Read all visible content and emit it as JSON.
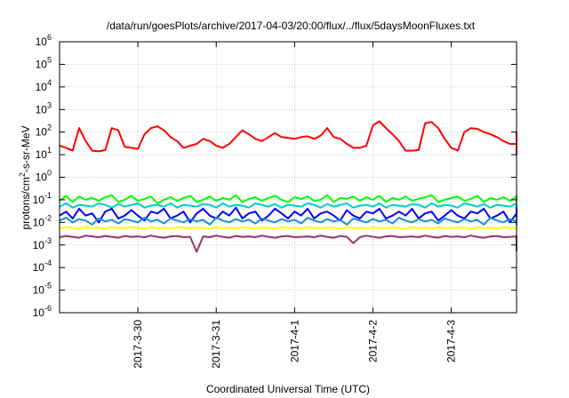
{
  "chart_data": {
    "type": "line",
    "title": "/data/run/goesPlots/archive/2017-04-03/20:00/flux/../flux/5daysMoonFluxes.txt",
    "xlabel": "Coordinated Universal Time (UTC)",
    "ylabel": {
      "base": "protons/cm",
      "sup": "2",
      "rest": "-s-sr-MeV"
    },
    "y_scale": "log",
    "ylim": [
      1e-06,
      1000000.0
    ],
    "y_ticks": [
      {
        "value": 1e-06,
        "base": "10",
        "exp": "-6"
      },
      {
        "value": 1e-05,
        "base": "10",
        "exp": "-5"
      },
      {
        "value": 0.0001,
        "base": "10",
        "exp": "-4"
      },
      {
        "value": 0.001,
        "base": "10",
        "exp": "-3"
      },
      {
        "value": 0.01,
        "base": "10",
        "exp": "-2"
      },
      {
        "value": 0.1,
        "base": "10",
        "exp": "-1"
      },
      {
        "value": 1,
        "base": "10",
        "exp": "0"
      },
      {
        "value": 10,
        "base": "10",
        "exp": "1"
      },
      {
        "value": 100,
        "base": "10",
        "exp": "2"
      },
      {
        "value": 1000,
        "base": "10",
        "exp": "3"
      },
      {
        "value": 10000,
        "base": "10",
        "exp": "4"
      },
      {
        "value": 100000,
        "base": "10",
        "exp": "5"
      },
      {
        "value": 1000000,
        "base": "10",
        "exp": "6"
      }
    ],
    "xlim": [
      "2017-03-29T00:00",
      "2017-04-03T20:00"
    ],
    "x_ticks": [
      "2017-3-30",
      "2017-3-31",
      "2017-4-1",
      "2017-4-2",
      "2017-4-3"
    ],
    "x_tick_dates": [
      "2017-03-30T00:00",
      "2017-03-31T00:00",
      "2017-04-01T00:00",
      "2017-04-02T00:00",
      "2017-04-03T00:00"
    ],
    "grid": true,
    "legend": "none",
    "series": [
      {
        "color": "#ff0000",
        "x_start": "2017-03-29T00:00",
        "x_step_hours": 2,
        "values": [
          25,
          20,
          15,
          150,
          40,
          15,
          14,
          16,
          150,
          120,
          22,
          20,
          18,
          80,
          150,
          180,
          120,
          60,
          40,
          20,
          25,
          30,
          50,
          40,
          25,
          20,
          30,
          60,
          120,
          80,
          50,
          40,
          60,
          90,
          60,
          55,
          50,
          60,
          65,
          50,
          70,
          150,
          60,
          50,
          30,
          20,
          20,
          25,
          200,
          300,
          150,
          80,
          40,
          15,
          15,
          16,
          250,
          280,
          150,
          50,
          20,
          15,
          100,
          150,
          140,
          100,
          80,
          60,
          40,
          30,
          30,
          20,
          10,
          12,
          15,
          40,
          30,
          20,
          25,
          20,
          15,
          12,
          13,
          20,
          30,
          25,
          20,
          15,
          12,
          10,
          15,
          14,
          12,
          10,
          15,
          18,
          20,
          14,
          15,
          20,
          18,
          16,
          20,
          25,
          20,
          40,
          80,
          100,
          90,
          70,
          50,
          30,
          20,
          15,
          12,
          14,
          20,
          22,
          20,
          18,
          15,
          16,
          20,
          25,
          18,
          16,
          20,
          40
        ]
      },
      {
        "color": "#00ff00",
        "x_start": "2017-03-29T00:00",
        "x_step_hours": 2,
        "values": [
          0.09,
          0.15,
          0.08,
          0.14,
          0.1,
          0.12,
          0.09,
          0.13,
          0.16,
          0.08,
          0.1,
          0.15,
          0.09,
          0.11,
          0.14,
          0.07,
          0.1,
          0.13,
          0.09,
          0.12,
          0.15,
          0.08,
          0.1,
          0.14,
          0.09,
          0.12,
          0.1,
          0.16,
          0.08,
          0.11,
          0.13,
          0.09,
          0.12,
          0.15,
          0.1,
          0.08,
          0.13,
          0.11,
          0.14,
          0.09,
          0.1,
          0.16,
          0.08,
          0.12,
          0.11,
          0.14,
          0.09,
          0.13,
          0.1,
          0.15,
          0.08,
          0.12,
          0.1,
          0.14,
          0.09,
          0.11,
          0.13,
          0.16,
          0.08,
          0.1,
          0.12,
          0.14,
          0.09,
          0.11,
          0.15,
          0.08,
          0.12,
          0.1,
          0.13,
          0.09,
          0.14,
          0.11,
          0.1,
          0.16,
          0.08,
          0.12,
          0.1,
          0.14,
          0.09,
          0.13,
          0.11,
          0.15,
          0.08,
          0.1,
          0.12,
          0.14,
          0.09,
          0.11,
          0.13,
          0.1,
          0.16,
          0.08,
          0.12,
          0.1,
          0.14,
          0.09,
          0.11,
          0.13,
          0.15,
          0.08,
          0.1,
          0.12,
          0.14,
          0.09,
          0.11,
          0.13,
          0.1,
          0.15,
          0.08,
          0.12,
          0.1,
          0.14,
          0.09,
          0.11,
          0.13,
          0.16,
          0.1,
          0.12,
          0.14,
          0.09,
          0.11,
          0.13,
          0.15,
          0.12,
          0.14,
          0.16
        ]
      },
      {
        "color": "#00cccc",
        "x_start": "2017-03-29T00:00",
        "x_step_hours": 2,
        "values": [
          0.05,
          0.07,
          0.045,
          0.06,
          0.055,
          0.05,
          0.07,
          0.06,
          0.045,
          0.065,
          0.05,
          0.06,
          0.07,
          0.045,
          0.055,
          0.06,
          0.05,
          0.07,
          0.045,
          0.06,
          0.055,
          0.05,
          0.065,
          0.06,
          0.045,
          0.07,
          0.05,
          0.06,
          0.055,
          0.045,
          0.07,
          0.06,
          0.05,
          0.065,
          0.045,
          0.06,
          0.055,
          0.05,
          0.07,
          0.06,
          0.045,
          0.065,
          0.05,
          0.06,
          0.07,
          0.045,
          0.055,
          0.06,
          0.05,
          0.07,
          0.045,
          0.06,
          0.055,
          0.05,
          0.065,
          0.06,
          0.045,
          0.07,
          0.05,
          0.06,
          0.055,
          0.045,
          0.07,
          0.06,
          0.05,
          0.065,
          0.045,
          0.06,
          0.055,
          0.05,
          0.07,
          0.06,
          0.045,
          0.065,
          0.05,
          0.06,
          0.07,
          0.045,
          0.055,
          0.06,
          0.05,
          0.07,
          0.045,
          0.06,
          0.055,
          0.05,
          0.065,
          0.06,
          0.045,
          0.07,
          0.05,
          0.06,
          0.055,
          0.045,
          0.07,
          0.06,
          0.05,
          0.065,
          0.045,
          0.06,
          0.055,
          0.05,
          0.07,
          0.06,
          0.045,
          0.065,
          0.05,
          0.06,
          0.07,
          0.045,
          0.055,
          0.06,
          0.05,
          0.07,
          0.045,
          0.06,
          0.055,
          0.05,
          0.065,
          0.06,
          0.045,
          0.07,
          0.05,
          0.06,
          0.055,
          0.06,
          0.065,
          0.07
        ]
      },
      {
        "color": "#0000ff",
        "x_start": "2017-03-29T00:00",
        "x_step_hours": 2,
        "values": [
          0.02,
          0.03,
          0.015,
          0.04,
          0.02,
          0.025,
          0.01,
          0.03,
          0.04,
          0.015,
          0.02,
          0.035,
          0.02,
          0.012,
          0.03,
          0.025,
          0.04,
          0.015,
          0.02,
          0.03,
          0.01,
          0.025,
          0.04,
          0.02,
          0.015,
          0.03,
          0.02,
          0.045,
          0.015,
          0.025,
          0.03,
          0.012,
          0.02,
          0.04,
          0.025,
          0.015,
          0.03,
          0.02,
          0.04,
          0.015,
          0.025,
          0.03,
          0.02,
          0.012,
          0.035,
          0.02,
          0.015,
          0.03,
          0.025,
          0.04,
          0.015,
          0.02,
          0.03,
          0.02,
          0.04,
          0.015,
          0.025,
          0.03,
          0.012,
          0.02,
          0.035,
          0.02,
          0.015,
          0.03,
          0.025,
          0.04,
          0.015,
          0.02,
          0.03,
          0.01,
          0.025,
          0.04,
          0.02,
          0.015,
          0.03,
          0.02,
          0.045,
          0.015,
          0.025,
          0.03,
          0.012,
          0.02,
          0.04,
          0.025,
          0.015,
          0.03,
          0.02,
          0.04,
          0.015,
          0.025,
          0.03,
          0.02,
          0.012,
          0.035,
          0.02,
          0.015,
          0.03,
          0.025,
          0.04,
          0.015,
          0.02,
          0.03,
          0.02,
          0.04,
          0.015,
          0.025,
          0.03,
          0.012,
          0.02,
          0.035,
          0.02,
          0.015,
          0.03,
          0.025,
          0.04,
          0.015,
          0.02,
          0.03,
          0.01,
          0.025,
          0.04,
          0.02,
          0.015,
          0.03,
          0.025,
          0.02,
          0.03,
          0.025
        ]
      },
      {
        "color": "#1a8fd0",
        "x_start": "2017-03-29T00:00",
        "x_step_hours": 2,
        "values": [
          0.012,
          0.016,
          0.01,
          0.014,
          0.012,
          0.008,
          0.015,
          0.011,
          0.013,
          0.009,
          0.014,
          0.012,
          0.01,
          0.016,
          0.011,
          0.013,
          0.009,
          0.015,
          0.012,
          0.01,
          0.014,
          0.011,
          0.013,
          0.008,
          0.016,
          0.012,
          0.01,
          0.014,
          0.011,
          0.013,
          0.009,
          0.015,
          0.012,
          0.01,
          0.014,
          0.011,
          0.013,
          0.009,
          0.016,
          0.012,
          0.01,
          0.014,
          0.011,
          0.013,
          0.008,
          0.015,
          0.012,
          0.01,
          0.014,
          0.011,
          0.013,
          0.009,
          0.016,
          0.012,
          0.01,
          0.014,
          0.011,
          0.013,
          0.009,
          0.015,
          0.012,
          0.01,
          0.014,
          0.011,
          0.013,
          0.008,
          0.016,
          0.012,
          0.01,
          0.014,
          0.011,
          0.013,
          0.009,
          0.015,
          0.012,
          0.01,
          0.014,
          0.011,
          0.013,
          0.009,
          0.016,
          0.012,
          0.01,
          0.014,
          0.011,
          0.013,
          0.008,
          0.015,
          0.012,
          0.01,
          0.014,
          0.011,
          0.013,
          0.009,
          0.016,
          0.012,
          0.01,
          0.014,
          0.011,
          0.013,
          0.009,
          0.015,
          0.012,
          0.01,
          0.014,
          0.011,
          0.013,
          0.008,
          0.016,
          0.012,
          0.01,
          0.014,
          0.011,
          0.013,
          0.009,
          0.015,
          0.012,
          0.01,
          0.014,
          0.011,
          0.013,
          0.012,
          0.014,
          0.013
        ]
      },
      {
        "color": "#ffff00",
        "x_start": "2017-03-29T00:00",
        "x_step_hours": 2,
        "values": [
          0.0055,
          0.006,
          0.0058,
          0.0052,
          0.0062,
          0.0056,
          0.0059,
          0.0053,
          0.0061,
          0.0057,
          0.0055,
          0.006,
          0.0058,
          0.0052,
          0.0062,
          0.0056,
          0.0059,
          0.0053,
          0.0061,
          0.0057,
          0.0055,
          0.006,
          0.0058,
          0.0052,
          0.0062,
          0.0056,
          0.0059,
          0.0053,
          0.0061,
          0.0057,
          0.0055,
          0.006,
          0.0058,
          0.0052,
          0.0062,
          0.0056,
          0.0059,
          0.0053,
          0.0061,
          0.0057,
          0.0055,
          0.006,
          0.0058,
          0.0052,
          0.0062,
          0.0056,
          0.0059,
          0.0053,
          0.0061,
          0.0057,
          0.0055,
          0.006,
          0.0058,
          0.0052,
          0.0062,
          0.0056,
          0.0059,
          0.0053,
          0.0061,
          0.0057,
          0.0055,
          0.006,
          0.0058,
          0.0052,
          0.0062,
          0.0056,
          0.0059,
          0.0053,
          0.0061,
          0.0057,
          0.0055,
          0.006,
          0.0058,
          0.0052,
          0.0062,
          0.0056,
          0.0059,
          0.0053,
          0.0061,
          0.0057,
          0.0055,
          0.006,
          0.0058,
          0.0052,
          0.0062,
          0.0056,
          0.0059,
          0.0053,
          0.0061,
          0.0057,
          0.0055,
          0.006,
          0.0058,
          0.0052,
          0.0062,
          0.0056,
          0.0059,
          0.0053,
          0.0061,
          0.0057,
          0.0055,
          0.006,
          0.0058,
          0.0052,
          0.0062,
          0.0056,
          0.0059,
          0.0053,
          0.0061,
          0.0057,
          0.0055,
          0.006,
          0.0058,
          0.0052,
          0.0062,
          0.0056,
          0.0059,
          0.0053,
          0.0061,
          0.0057,
          0.0055,
          0.006,
          0.0058,
          0.0056,
          0.006,
          0.0058
        ]
      },
      {
        "color": "#993366",
        "x_start": "2017-03-29T00:00",
        "x_step_hours": 2,
        "values": [
          0.0022,
          0.0025,
          0.0023,
          0.0021,
          0.0026,
          0.0024,
          0.0022,
          0.0025,
          0.0023,
          0.0021,
          0.0025,
          0.0023,
          0.0024,
          0.0022,
          0.0026,
          0.0023,
          0.0021,
          0.0024,
          0.0025,
          0.0022,
          0.0023,
          0.0005,
          0.0024,
          0.0022,
          0.0026,
          0.0023,
          0.0021,
          0.0025,
          0.0023,
          0.0024,
          0.0022,
          0.0026,
          0.0023,
          0.0021,
          0.0024,
          0.0025,
          0.0022,
          0.0023,
          0.0024,
          0.0022,
          0.0026,
          0.0023,
          0.0021,
          0.0025,
          0.0023,
          0.0012,
          0.0022,
          0.0026,
          0.0023,
          0.0021,
          0.0024,
          0.0025,
          0.0022,
          0.0023,
          0.0024,
          0.0022,
          0.0026,
          0.0023,
          0.0021,
          0.0025,
          0.0023,
          0.0024,
          0.0022,
          0.0026,
          0.0023,
          0.0021,
          0.0024,
          0.0025,
          0.0022,
          0.0023,
          0.0024,
          0.0022,
          0.0026,
          0.0023,
          0.0021,
          0.0025,
          0.0023,
          0.0024,
          0.0022,
          0.0026,
          0.0023,
          0.0021,
          0.0024,
          0.0025,
          0.0022,
          0.0023,
          0.0024,
          0.00055,
          0.0026,
          0.0023,
          0.0021,
          0.0025,
          0.0023,
          0.0024,
          0.0022,
          0.0026,
          0.0023,
          0.0021,
          0.0024,
          0.0025,
          0.0022,
          0.0023,
          0.0024,
          0.0022,
          0.0026,
          0.0023,
          0.0021,
          0.0025,
          0.0023,
          0.0024,
          0.0022,
          0.0026,
          0.0023,
          0.0021,
          0.0024,
          0.0025,
          0.0022,
          0.0023,
          0.0024,
          0.0022,
          0.0026,
          0.0023,
          0.0021,
          0.0025,
          0.0024,
          0.0023,
          0.0022,
          0.0024
        ]
      }
    ]
  }
}
